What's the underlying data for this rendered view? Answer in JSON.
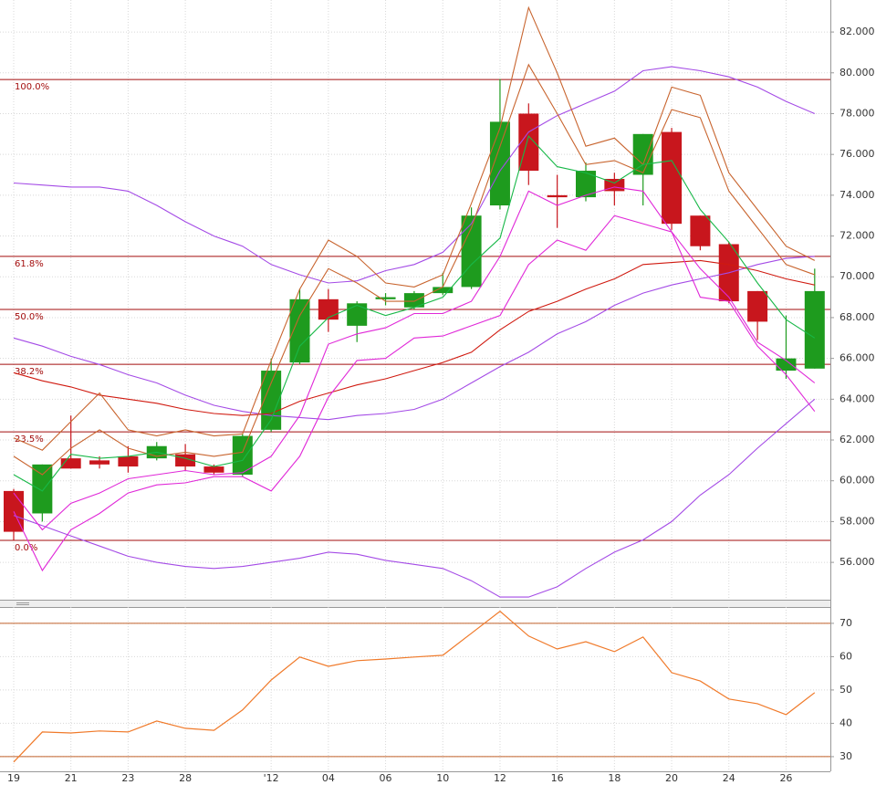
{
  "chart_data": [
    {
      "type": "candlestick",
      "categories": [
        "19",
        null,
        "21",
        null,
        "23",
        null,
        "28",
        null,
        null,
        "'12",
        null,
        "04",
        null,
        "06",
        null,
        "10",
        null,
        "12",
        null,
        "16",
        null,
        "18",
        null,
        "20",
        null,
        "24",
        null,
        "26",
        null
      ],
      "open": [
        59.5,
        58.4,
        61.1,
        61.0,
        61.2,
        61.1,
        61.3,
        60.7,
        60.3,
        62.5,
        65.8,
        68.9,
        67.6,
        68.9,
        68.5,
        69.2,
        69.5,
        73.5,
        78.0,
        74.0,
        73.9,
        74.8,
        75.0,
        77.1,
        73.0,
        71.6,
        69.3,
        65.4,
        65.5
      ],
      "high": [
        59.6,
        60.8,
        63.2,
        61.2,
        61.7,
        61.9,
        61.8,
        60.8,
        62.3,
        66.0,
        69.4,
        69.4,
        68.8,
        69.2,
        69.3,
        70.2,
        73.4,
        79.7,
        78.5,
        75.0,
        75.6,
        75.1,
        77.0,
        77.3,
        73.0,
        71.7,
        69.3,
        68.1,
        70.4
      ],
      "low": [
        57.1,
        58.0,
        60.6,
        60.6,
        60.4,
        61.0,
        60.5,
        60.3,
        60.2,
        62.4,
        65.7,
        67.3,
        66.8,
        68.6,
        68.4,
        69.1,
        69.4,
        73.3,
        74.5,
        72.4,
        73.7,
        73.5,
        73.5,
        72.3,
        71.3,
        68.7,
        66.9,
        65.0,
        65.5
      ],
      "close": [
        57.5,
        60.8,
        60.6,
        60.8,
        60.7,
        61.7,
        60.7,
        60.4,
        62.2,
        65.4,
        68.9,
        67.9,
        68.7,
        69.0,
        69.2,
        69.5,
        73.0,
        77.6,
        75.2,
        73.9,
        75.2,
        74.2,
        77.0,
        72.6,
        71.5,
        68.8,
        67.8,
        66.0,
        69.3
      ],
      "up_color": "#1e9b1e",
      "down_color": "#c8161d",
      "series": [
        {
          "color": "#a44be6",
          "values": [
            74.6,
            74.5,
            74.4,
            74.4,
            74.2,
            73.5,
            72.7,
            72.0,
            71.5,
            70.6,
            70.1,
            69.7,
            69.8,
            70.3,
            70.6,
            71.2,
            72.6,
            75.2,
            77.1,
            77.9,
            78.5,
            79.1,
            80.1,
            80.3,
            80.1,
            79.8,
            79.3,
            78.6,
            78.0
          ]
        },
        {
          "color": "#a44be6",
          "values": [
            67.0,
            66.6,
            66.1,
            65.7,
            65.2,
            64.8,
            64.2,
            63.7,
            63.4,
            63.2,
            63.1,
            63.0,
            63.2,
            63.3,
            63.5,
            64.0,
            64.8,
            65.6,
            66.3,
            67.2,
            67.8,
            68.6,
            69.2,
            69.6,
            69.9,
            70.2,
            70.6,
            70.9,
            71.0
          ]
        },
        {
          "color": "#a44be6",
          "values": [
            58.3,
            57.8,
            57.3,
            56.8,
            56.3,
            56.0,
            55.8,
            55.7,
            55.8,
            56.0,
            56.2,
            56.5,
            56.4,
            56.1,
            55.9,
            55.7,
            55.1,
            54.3,
            54.3,
            54.8,
            55.7,
            56.5,
            57.1,
            58.0,
            59.3,
            60.3,
            61.6,
            62.8,
            64.0
          ]
        },
        {
          "color": "#d01a10",
          "values": [
            65.3,
            64.9,
            64.6,
            64.2,
            64.0,
            63.8,
            63.5,
            63.3,
            63.2,
            63.3,
            63.9,
            64.3,
            64.7,
            65.0,
            65.4,
            65.8,
            66.3,
            67.4,
            68.3,
            68.8,
            69.4,
            69.9,
            70.6,
            70.7,
            70.8,
            70.6,
            70.3,
            69.9,
            69.6
          ]
        },
        {
          "color": "#c8642e",
          "values": [
            62.1,
            61.5,
            62.9,
            64.3,
            62.5,
            62.2,
            62.5,
            62.2,
            62.3,
            65.9,
            69.4,
            71.8,
            71.0,
            69.7,
            69.5,
            70.1,
            73.6,
            77.3,
            83.2,
            80.0,
            76.4,
            76.8,
            75.5,
            79.3,
            78.9,
            75.1,
            73.3,
            71.5,
            70.8
          ]
        },
        {
          "color": "#c8642e",
          "values": [
            61.2,
            60.3,
            61.6,
            62.5,
            61.6,
            61.2,
            61.4,
            61.2,
            61.4,
            64.8,
            68.1,
            70.4,
            69.7,
            68.8,
            68.8,
            69.5,
            72.4,
            76.4,
            80.4,
            78.0,
            75.5,
            75.7,
            75.1,
            78.2,
            77.8,
            74.2,
            72.4,
            70.6,
            70.1
          ]
        },
        {
          "color": "#18b848",
          "values": [
            60.3,
            59.5,
            61.3,
            61.1,
            61.2,
            61.4,
            61.1,
            60.7,
            61.0,
            63.0,
            66.6,
            68.0,
            68.6,
            68.1,
            68.5,
            69.0,
            70.6,
            71.9,
            76.9,
            75.4,
            75.1,
            74.6,
            75.5,
            75.7,
            73.3,
            71.7,
            69.7,
            67.9,
            67.0
          ]
        },
        {
          "color": "#e028d8",
          "values": [
            59.4,
            57.6,
            58.9,
            59.4,
            60.1,
            60.3,
            60.5,
            60.3,
            60.4,
            61.2,
            63.2,
            66.7,
            67.2,
            67.5,
            68.2,
            68.2,
            68.8,
            71.0,
            74.2,
            73.5,
            74.0,
            74.4,
            74.2,
            72.2,
            70.4,
            69.0,
            66.8,
            65.9,
            64.8
          ]
        },
        {
          "color": "#e028d8",
          "values": [
            58.5,
            55.6,
            57.6,
            58.4,
            59.4,
            59.8,
            59.9,
            60.2,
            60.2,
            59.5,
            61.2,
            64.1,
            65.9,
            66.0,
            67.0,
            67.1,
            67.6,
            68.1,
            70.6,
            71.8,
            71.3,
            73.0,
            72.6,
            72.2,
            69.0,
            68.8,
            66.6,
            65.2,
            63.4
          ]
        }
      ],
      "fib_levels": [
        {
          "value": 79.67,
          "label": "100.0%"
        },
        {
          "value": 71.0,
          "label": "61.8%"
        },
        {
          "value": 68.4,
          "label": "50.0%"
        },
        {
          "value": 65.71,
          "label": "38.2%"
        },
        {
          "value": 62.4,
          "label": "23.5%"
        },
        {
          "value": 57.08,
          "label": "0.0%"
        }
      ],
      "fib_color": "#a30d0d",
      "ylim": [
        54.17,
        83.57
      ],
      "yticks": [
        {
          "value": 56,
          "label": "56.000"
        },
        {
          "value": 58,
          "label": "58.000"
        },
        {
          "value": 60,
          "label": "60.000"
        },
        {
          "value": 62,
          "label": "62.000"
        },
        {
          "value": 64,
          "label": "64.000"
        },
        {
          "value": 66,
          "label": "66.000"
        },
        {
          "value": 68,
          "label": "68.000"
        },
        {
          "value": 70,
          "label": "70.000"
        },
        {
          "value": 72,
          "label": "72.000"
        },
        {
          "value": 74,
          "label": "74.000"
        },
        {
          "value": 76,
          "label": "76.000"
        },
        {
          "value": 78,
          "label": "78.000"
        },
        {
          "value": 80,
          "label": "80.000"
        },
        {
          "value": 82,
          "label": "82.000"
        }
      ],
      "grid": true
    },
    {
      "type": "line",
      "values": [
        28.4,
        37.4,
        37.1,
        37.7,
        37.4,
        40.7,
        38.5,
        37.9,
        44.0,
        53.0,
        59.9,
        57.1,
        58.8,
        59.3,
        59.9,
        60.4,
        67.0,
        73.6,
        66.2,
        62.3,
        64.5,
        61.5,
        65.9,
        55.2,
        52.7,
        47.3,
        45.9,
        42.6,
        49.2
      ],
      "color": "#f07a2a",
      "hlines": [
        70,
        30
      ],
      "hline_color": "#c0622a",
      "ylim": [
        25.6,
        74.9
      ],
      "yticks": [
        30,
        40,
        50,
        60,
        70
      ],
      "grid": true
    }
  ]
}
